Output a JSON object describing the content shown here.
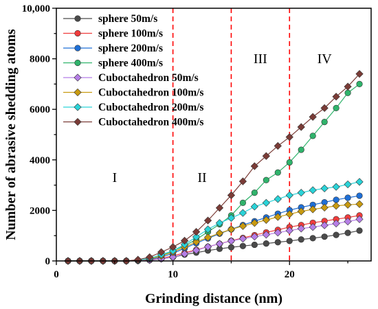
{
  "chart_data": {
    "type": "line",
    "xlabel": "Grinding distance (nm)",
    "ylabel": "Number of abrasive shedding atoms",
    "xlim": [
      0,
      27
    ],
    "ylim": [
      0,
      10000
    ],
    "xticks": [
      0,
      10,
      20
    ],
    "yticks": [
      0,
      2000,
      4000,
      6000,
      8000,
      10000
    ],
    "ytick_labels": [
      "0",
      "2000",
      "4000",
      "6000",
      "8000",
      "10,000"
    ],
    "legend_position": "top-left",
    "grid": false,
    "region_boundaries": [
      10,
      15,
      20
    ],
    "boundary_color": "#ff0000",
    "regions": [
      {
        "label": "I",
        "x": 5,
        "y": 3250
      },
      {
        "label": "II",
        "x": 12.5,
        "y": 3250
      },
      {
        "label": "III",
        "x": 17.5,
        "y": 7950
      },
      {
        "label": "IV",
        "x": 23,
        "y": 7950
      }
    ],
    "x": [
      1,
      2,
      3,
      4,
      5,
      6,
      7,
      8,
      9,
      10,
      11,
      12,
      13,
      14,
      15,
      16,
      17,
      18,
      19,
      20,
      21,
      22,
      23,
      24,
      25,
      26
    ],
    "series": [
      {
        "name": "sphere 50m/s",
        "color": "#4a4a4a",
        "marker": "circle",
        "values": [
          0,
          0,
          0,
          0,
          0,
          0,
          10,
          30,
          80,
          150,
          250,
          330,
          410,
          480,
          540,
          590,
          640,
          690,
          740,
          790,
          850,
          900,
          960,
          1030,
          1110,
          1200
        ]
      },
      {
        "name": "sphere 100m/s",
        "color": "#f03c3c",
        "marker": "circle",
        "values": [
          0,
          0,
          0,
          0,
          0,
          0,
          10,
          40,
          100,
          200,
          320,
          440,
          560,
          680,
          800,
          910,
          1020,
          1130,
          1230,
          1340,
          1420,
          1510,
          1580,
          1650,
          1720,
          1800
        ]
      },
      {
        "name": "sphere 200m/s",
        "color": "#1f6fd6",
        "marker": "circle",
        "values": [
          0,
          0,
          0,
          0,
          0,
          0,
          20,
          60,
          150,
          300,
          500,
          700,
          890,
          1080,
          1250,
          1420,
          1570,
          1720,
          1870,
          2010,
          2120,
          2220,
          2320,
          2420,
          2500,
          2580
        ]
      },
      {
        "name": "sphere 400m/s",
        "color": "#2fb36b",
        "marker": "circle",
        "values": [
          0,
          0,
          0,
          0,
          0,
          0,
          20,
          80,
          200,
          400,
          600,
          850,
          1150,
          1450,
          1800,
          2300,
          2700,
          3200,
          3500,
          3900,
          4400,
          4950,
          5500,
          6050,
          6650,
          7000
        ]
      },
      {
        "name": "Cuboctahedron 50m/s",
        "color": "#b57ee6",
        "marker": "diamond",
        "values": [
          0,
          0,
          0,
          0,
          0,
          0,
          10,
          30,
          80,
          150,
          280,
          420,
          560,
          680,
          790,
          880,
          960,
          1040,
          1120,
          1200,
          1280,
          1340,
          1410,
          1480,
          1560,
          1650
        ]
      },
      {
        "name": "Cuboctahedron 100m/s",
        "color": "#c89a10",
        "marker": "diamond",
        "values": [
          0,
          0,
          0,
          0,
          0,
          0,
          30,
          80,
          200,
          350,
          550,
          750,
          930,
          1100,
          1250,
          1380,
          1500,
          1620,
          1740,
          1850,
          1960,
          2040,
          2110,
          2180,
          2220,
          2250
        ]
      },
      {
        "name": "Cuboctahedron 200m/s",
        "color": "#2ad3d8",
        "marker": "diamond",
        "values": [
          0,
          0,
          0,
          0,
          0,
          0,
          30,
          100,
          250,
          400,
          650,
          950,
          1250,
          1500,
          1700,
          1900,
          2150,
          2300,
          2450,
          2600,
          2700,
          2800,
          2870,
          2930,
          3030,
          3130
        ]
      },
      {
        "name": "Cuboctahedron 400m/s",
        "color": "#7a3b36",
        "marker": "diamond",
        "values": [
          0,
          0,
          0,
          0,
          0,
          0,
          50,
          150,
          350,
          550,
          800,
          1150,
          1600,
          2100,
          2600,
          3150,
          3750,
          4150,
          4550,
          4900,
          5300,
          5700,
          6050,
          6500,
          6900,
          7400
        ]
      }
    ]
  }
}
